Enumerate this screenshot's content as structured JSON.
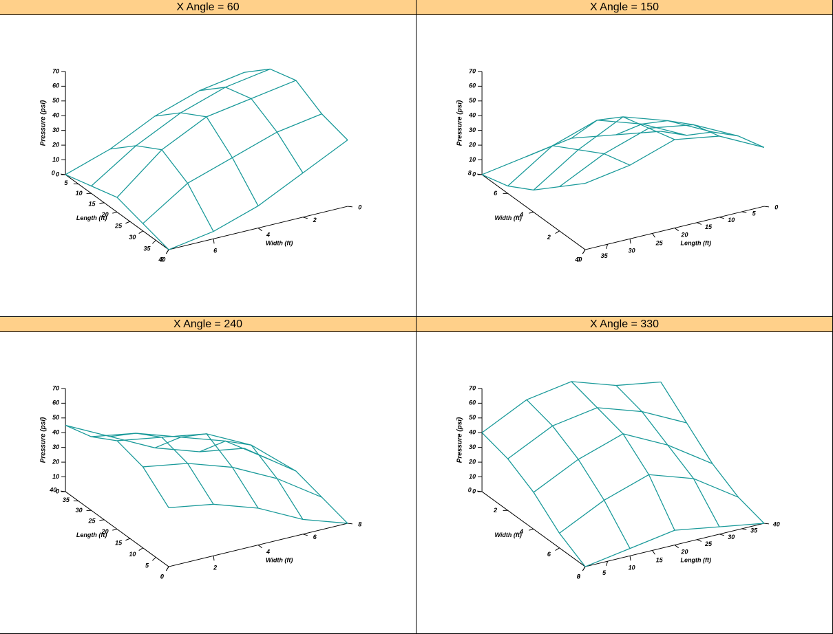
{
  "chart_data": [
    {
      "type": "surface3d",
      "title": "X Angle = 60",
      "x_angle": 60,
      "x_label": "Length (ft)",
      "y_label": "Width (ft)",
      "z_label": "Pressure (psi)",
      "color": "#1a9a9a",
      "x": [
        0,
        10,
        20,
        30,
        40
      ],
      "y": [
        0,
        2,
        4,
        6,
        8
      ],
      "z": [
        [
          40,
          55,
          60,
          50,
          45
        ],
        [
          35,
          50,
          55,
          45,
          30
        ],
        [
          25,
          40,
          50,
          35,
          15
        ],
        [
          10,
          25,
          35,
          25,
          5
        ],
        [
          0,
          5,
          10,
          5,
          0
        ]
      ],
      "xlim": [
        0,
        40
      ],
      "ylim": [
        0,
        8
      ],
      "zlim": [
        0,
        70
      ],
      "xticks": [
        0,
        5,
        10,
        15,
        20,
        25,
        30,
        35,
        40
      ],
      "yticks": [
        0,
        2,
        4,
        6,
        8
      ],
      "zticks": [
        0,
        10,
        20,
        30,
        40,
        50,
        60,
        70
      ]
    },
    {
      "type": "surface3d",
      "title": "X Angle = 150",
      "x_angle": 150,
      "x_label": "Length (ft)",
      "y_label": "Width (ft)",
      "z_label": "Pressure (psi)",
      "color": "#1a9a9a",
      "x": [
        0,
        10,
        20,
        30,
        40
      ],
      "y": [
        0,
        2,
        4,
        6,
        8
      ],
      "z": [
        [
          40,
          55,
          60,
          50,
          45
        ],
        [
          35,
          50,
          55,
          45,
          30
        ],
        [
          25,
          40,
          50,
          35,
          15
        ],
        [
          10,
          25,
          35,
          25,
          5
        ],
        [
          0,
          5,
          10,
          5,
          0
        ]
      ],
      "xlim": [
        0,
        40
      ],
      "ylim": [
        0,
        8
      ],
      "zlim": [
        0,
        70
      ],
      "xticks": [
        0,
        5,
        10,
        15,
        20,
        25,
        30,
        35,
        40
      ],
      "yticks": [
        0,
        2,
        4,
        6,
        8
      ],
      "zticks": [
        0,
        10,
        20,
        30,
        40,
        50,
        60,
        70
      ]
    },
    {
      "type": "surface3d",
      "title": "X Angle = 240",
      "x_angle": 240,
      "x_label": "Length (ft)",
      "y_label": "Width (ft)",
      "z_label": "Pressure (psi)",
      "color": "#1a9a9a",
      "x": [
        0,
        10,
        20,
        30,
        40
      ],
      "y": [
        0,
        2,
        4,
        6,
        8
      ],
      "z": [
        [
          40,
          55,
          60,
          50,
          45
        ],
        [
          35,
          50,
          55,
          45,
          30
        ],
        [
          25,
          40,
          50,
          35,
          15
        ],
        [
          10,
          25,
          35,
          25,
          5
        ],
        [
          0,
          5,
          10,
          5,
          0
        ]
      ],
      "xlim": [
        0,
        40
      ],
      "ylim": [
        0,
        8
      ],
      "zlim": [
        0,
        70
      ],
      "xticks": [
        0,
        5,
        10,
        15,
        20,
        25,
        30,
        35,
        40
      ],
      "yticks": [
        0,
        2,
        4,
        6,
        8
      ],
      "zticks": [
        0,
        10,
        20,
        30,
        40,
        50,
        60,
        70
      ]
    },
    {
      "type": "surface3d",
      "title": "X Angle = 330",
      "x_angle": 330,
      "x_label": "Length (ft)",
      "y_label": "Width (ft)",
      "z_label": "Pressure (psi)",
      "color": "#1a9a9a",
      "x": [
        0,
        10,
        20,
        30,
        40
      ],
      "y": [
        0,
        2,
        4,
        6,
        8
      ],
      "z": [
        [
          40,
          55,
          60,
          50,
          45
        ],
        [
          35,
          50,
          55,
          45,
          30
        ],
        [
          25,
          40,
          50,
          35,
          15
        ],
        [
          10,
          25,
          35,
          25,
          5
        ],
        [
          0,
          5,
          10,
          5,
          0
        ]
      ],
      "xlim": [
        0,
        40
      ],
      "ylim": [
        0,
        8
      ],
      "zlim": [
        0,
        70
      ],
      "xticks": [
        0,
        5,
        10,
        15,
        20,
        25,
        30,
        35,
        40
      ],
      "yticks": [
        0,
        2,
        4,
        6,
        8
      ],
      "zticks": [
        0,
        10,
        20,
        30,
        40,
        50,
        60,
        70
      ]
    }
  ]
}
